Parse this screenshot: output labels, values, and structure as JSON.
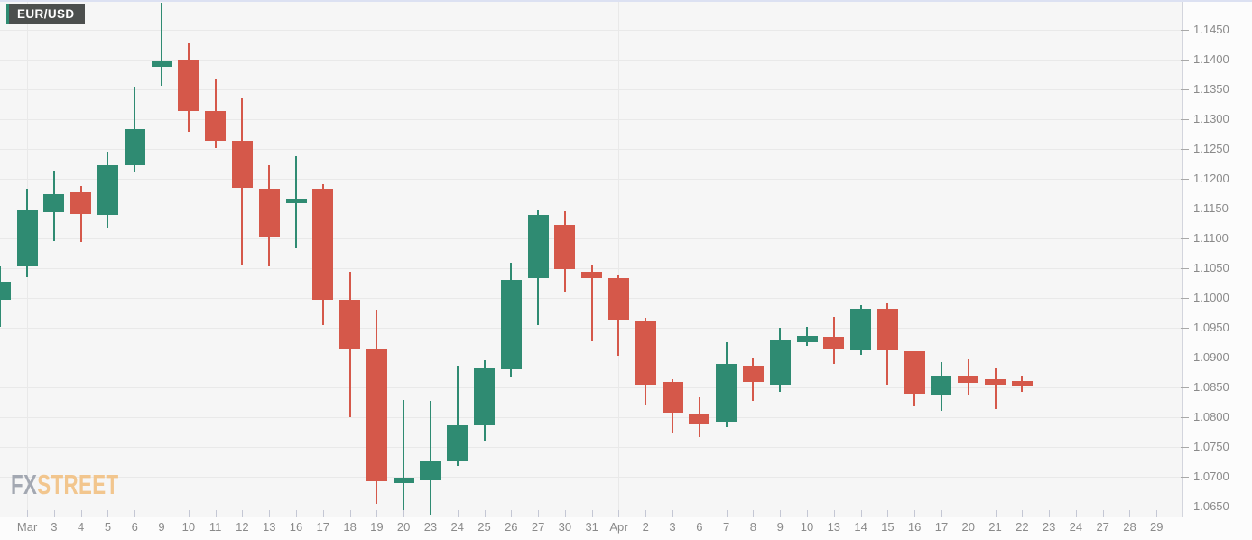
{
  "instrument_badge": {
    "label": "EUR/USD",
    "bg_color": "#4C4F4E",
    "accent_color": "#2F8B72",
    "text_color": "#FFFFFF"
  },
  "watermark": {
    "part1": "FX",
    "part2": "STREET",
    "part1_color": "#9BA0AB",
    "part2_color": "#F2C183"
  },
  "chart_data": {
    "type": "candlestick",
    "title": "EUR/USD daily candlestick chart",
    "legend": "none",
    "grid": {
      "horizontal": true,
      "vertical_month_start_slots": [
        0,
        22
      ]
    },
    "colors": {
      "up": "#2F8B72",
      "down": "#D5584A",
      "grid": "#e9e9e9",
      "axis_text": "#8a8a8a"
    },
    "y_axis": {
      "side": "right",
      "min": 1.065,
      "max": 1.145,
      "step": 0.005,
      "tick_labels": [
        "1.1450",
        "1.1400",
        "1.1350",
        "1.1300",
        "1.1250",
        "1.1200",
        "1.1150",
        "1.1100",
        "1.1050",
        "1.1000",
        "1.0950",
        "1.0900",
        "1.0850",
        "1.0800",
        "1.0750",
        "1.0700",
        "1.0650"
      ]
    },
    "x_axis": {
      "tick_labels": [
        "Mar",
        "3",
        "4",
        "5",
        "6",
        "9",
        "10",
        "11",
        "12",
        "13",
        "16",
        "17",
        "18",
        "19",
        "20",
        "23",
        "24",
        "25",
        "26",
        "27",
        "30",
        "31",
        "Apr",
        "2",
        "3",
        "6",
        "7",
        "8",
        "9",
        "10",
        "13",
        "14",
        "15",
        "16",
        "17",
        "20",
        "21",
        "22",
        "23",
        "24",
        "27",
        "28",
        "29"
      ]
    },
    "candles": [
      {
        "date": "Feb 28",
        "open": 1.0997,
        "high": 1.1053,
        "low": 1.0952,
        "close": 1.1028
      },
      {
        "date": "Mar 2",
        "open": 1.1053,
        "high": 1.1183,
        "low": 1.1035,
        "close": 1.1147
      },
      {
        "date": "Mar 3",
        "open": 1.1144,
        "high": 1.1213,
        "low": 1.1096,
        "close": 1.1174
      },
      {
        "date": "Mar 4",
        "open": 1.1177,
        "high": 1.1188,
        "low": 1.1094,
        "close": 1.1141
      },
      {
        "date": "Mar 5",
        "open": 1.1139,
        "high": 1.1246,
        "low": 1.1118,
        "close": 1.1223
      },
      {
        "date": "Mar 6",
        "open": 1.1223,
        "high": 1.1355,
        "low": 1.1212,
        "close": 1.1283
      },
      {
        "date": "Mar 9",
        "open": 1.1388,
        "high": 1.1496,
        "low": 1.1356,
        "close": 1.1399
      },
      {
        "date": "Mar 10",
        "open": 1.14,
        "high": 1.1427,
        "low": 1.1279,
        "close": 1.1314
      },
      {
        "date": "Mar 11",
        "open": 1.1314,
        "high": 1.1368,
        "low": 1.1252,
        "close": 1.1264
      },
      {
        "date": "Mar 12",
        "open": 1.1263,
        "high": 1.1336,
        "low": 1.1056,
        "close": 1.1185
      },
      {
        "date": "Mar 13",
        "open": 1.1183,
        "high": 1.1223,
        "low": 1.1053,
        "close": 1.1102
      },
      {
        "date": "Mar 16",
        "open": 1.1159,
        "high": 1.1238,
        "low": 1.1083,
        "close": 1.1167
      },
      {
        "date": "Mar 17",
        "open": 1.1183,
        "high": 1.1191,
        "low": 1.0955,
        "close": 1.0997
      },
      {
        "date": "Mar 18",
        "open": 1.0997,
        "high": 1.1044,
        "low": 1.08,
        "close": 1.0914
      },
      {
        "date": "Mar 19",
        "open": 1.0913,
        "high": 1.0981,
        "low": 1.0655,
        "close": 1.0692
      },
      {
        "date": "Mar 20",
        "open": 1.0689,
        "high": 1.0829,
        "low": 1.0636,
        "close": 1.0698
      },
      {
        "date": "Mar 23",
        "open": 1.0694,
        "high": 1.0827,
        "low": 1.0636,
        "close": 1.0726
      },
      {
        "date": "Mar 24",
        "open": 1.0728,
        "high": 1.0886,
        "low": 1.0718,
        "close": 1.0786
      },
      {
        "date": "Mar 25",
        "open": 1.0786,
        "high": 1.0895,
        "low": 1.076,
        "close": 1.0882
      },
      {
        "date": "Mar 26",
        "open": 1.0881,
        "high": 1.1059,
        "low": 1.0868,
        "close": 1.103
      },
      {
        "date": "Mar 27",
        "open": 1.1033,
        "high": 1.1147,
        "low": 1.0955,
        "close": 1.114
      },
      {
        "date": "Mar 30",
        "open": 1.1123,
        "high": 1.1145,
        "low": 1.1011,
        "close": 1.1048
      },
      {
        "date": "Mar 31",
        "open": 1.1044,
        "high": 1.1056,
        "low": 1.0927,
        "close": 1.1033
      },
      {
        "date": "Apr 1",
        "open": 1.1034,
        "high": 1.104,
        "low": 1.0903,
        "close": 1.0964
      },
      {
        "date": "Apr 2",
        "open": 1.0962,
        "high": 1.0967,
        "low": 1.0819,
        "close": 1.0855
      },
      {
        "date": "Apr 3",
        "open": 1.0859,
        "high": 1.0864,
        "low": 1.0773,
        "close": 1.0807
      },
      {
        "date": "Apr 6",
        "open": 1.0806,
        "high": 1.0834,
        "low": 1.0767,
        "close": 1.079
      },
      {
        "date": "Apr 7",
        "open": 1.0792,
        "high": 1.0926,
        "low": 1.0783,
        "close": 1.089
      },
      {
        "date": "Apr 8",
        "open": 1.0887,
        "high": 1.09,
        "low": 1.0828,
        "close": 1.0859
      },
      {
        "date": "Apr 9",
        "open": 1.0855,
        "high": 1.095,
        "low": 1.0842,
        "close": 1.0929
      },
      {
        "date": "Apr 10",
        "open": 1.0925,
        "high": 1.0952,
        "low": 1.0919,
        "close": 1.0937
      },
      {
        "date": "Apr 13",
        "open": 1.0935,
        "high": 1.0968,
        "low": 1.089,
        "close": 1.0914
      },
      {
        "date": "Apr 14",
        "open": 1.0912,
        "high": 1.0988,
        "low": 1.0904,
        "close": 1.0982
      },
      {
        "date": "Apr 15",
        "open": 1.0982,
        "high": 1.0991,
        "low": 1.0855,
        "close": 1.0912
      },
      {
        "date": "Apr 16",
        "open": 1.091,
        "high": 1.091,
        "low": 1.0818,
        "close": 1.084
      },
      {
        "date": "Apr 17",
        "open": 1.0838,
        "high": 1.0893,
        "low": 1.0811,
        "close": 1.087
      },
      {
        "date": "Apr 20",
        "open": 1.087,
        "high": 1.0897,
        "low": 1.0838,
        "close": 1.0858
      },
      {
        "date": "Apr 21",
        "open": 1.0864,
        "high": 1.0883,
        "low": 1.0814,
        "close": 1.0854
      },
      {
        "date": "Apr 22",
        "open": 1.086,
        "high": 1.087,
        "low": 1.0843,
        "close": 1.0851
      }
    ]
  }
}
